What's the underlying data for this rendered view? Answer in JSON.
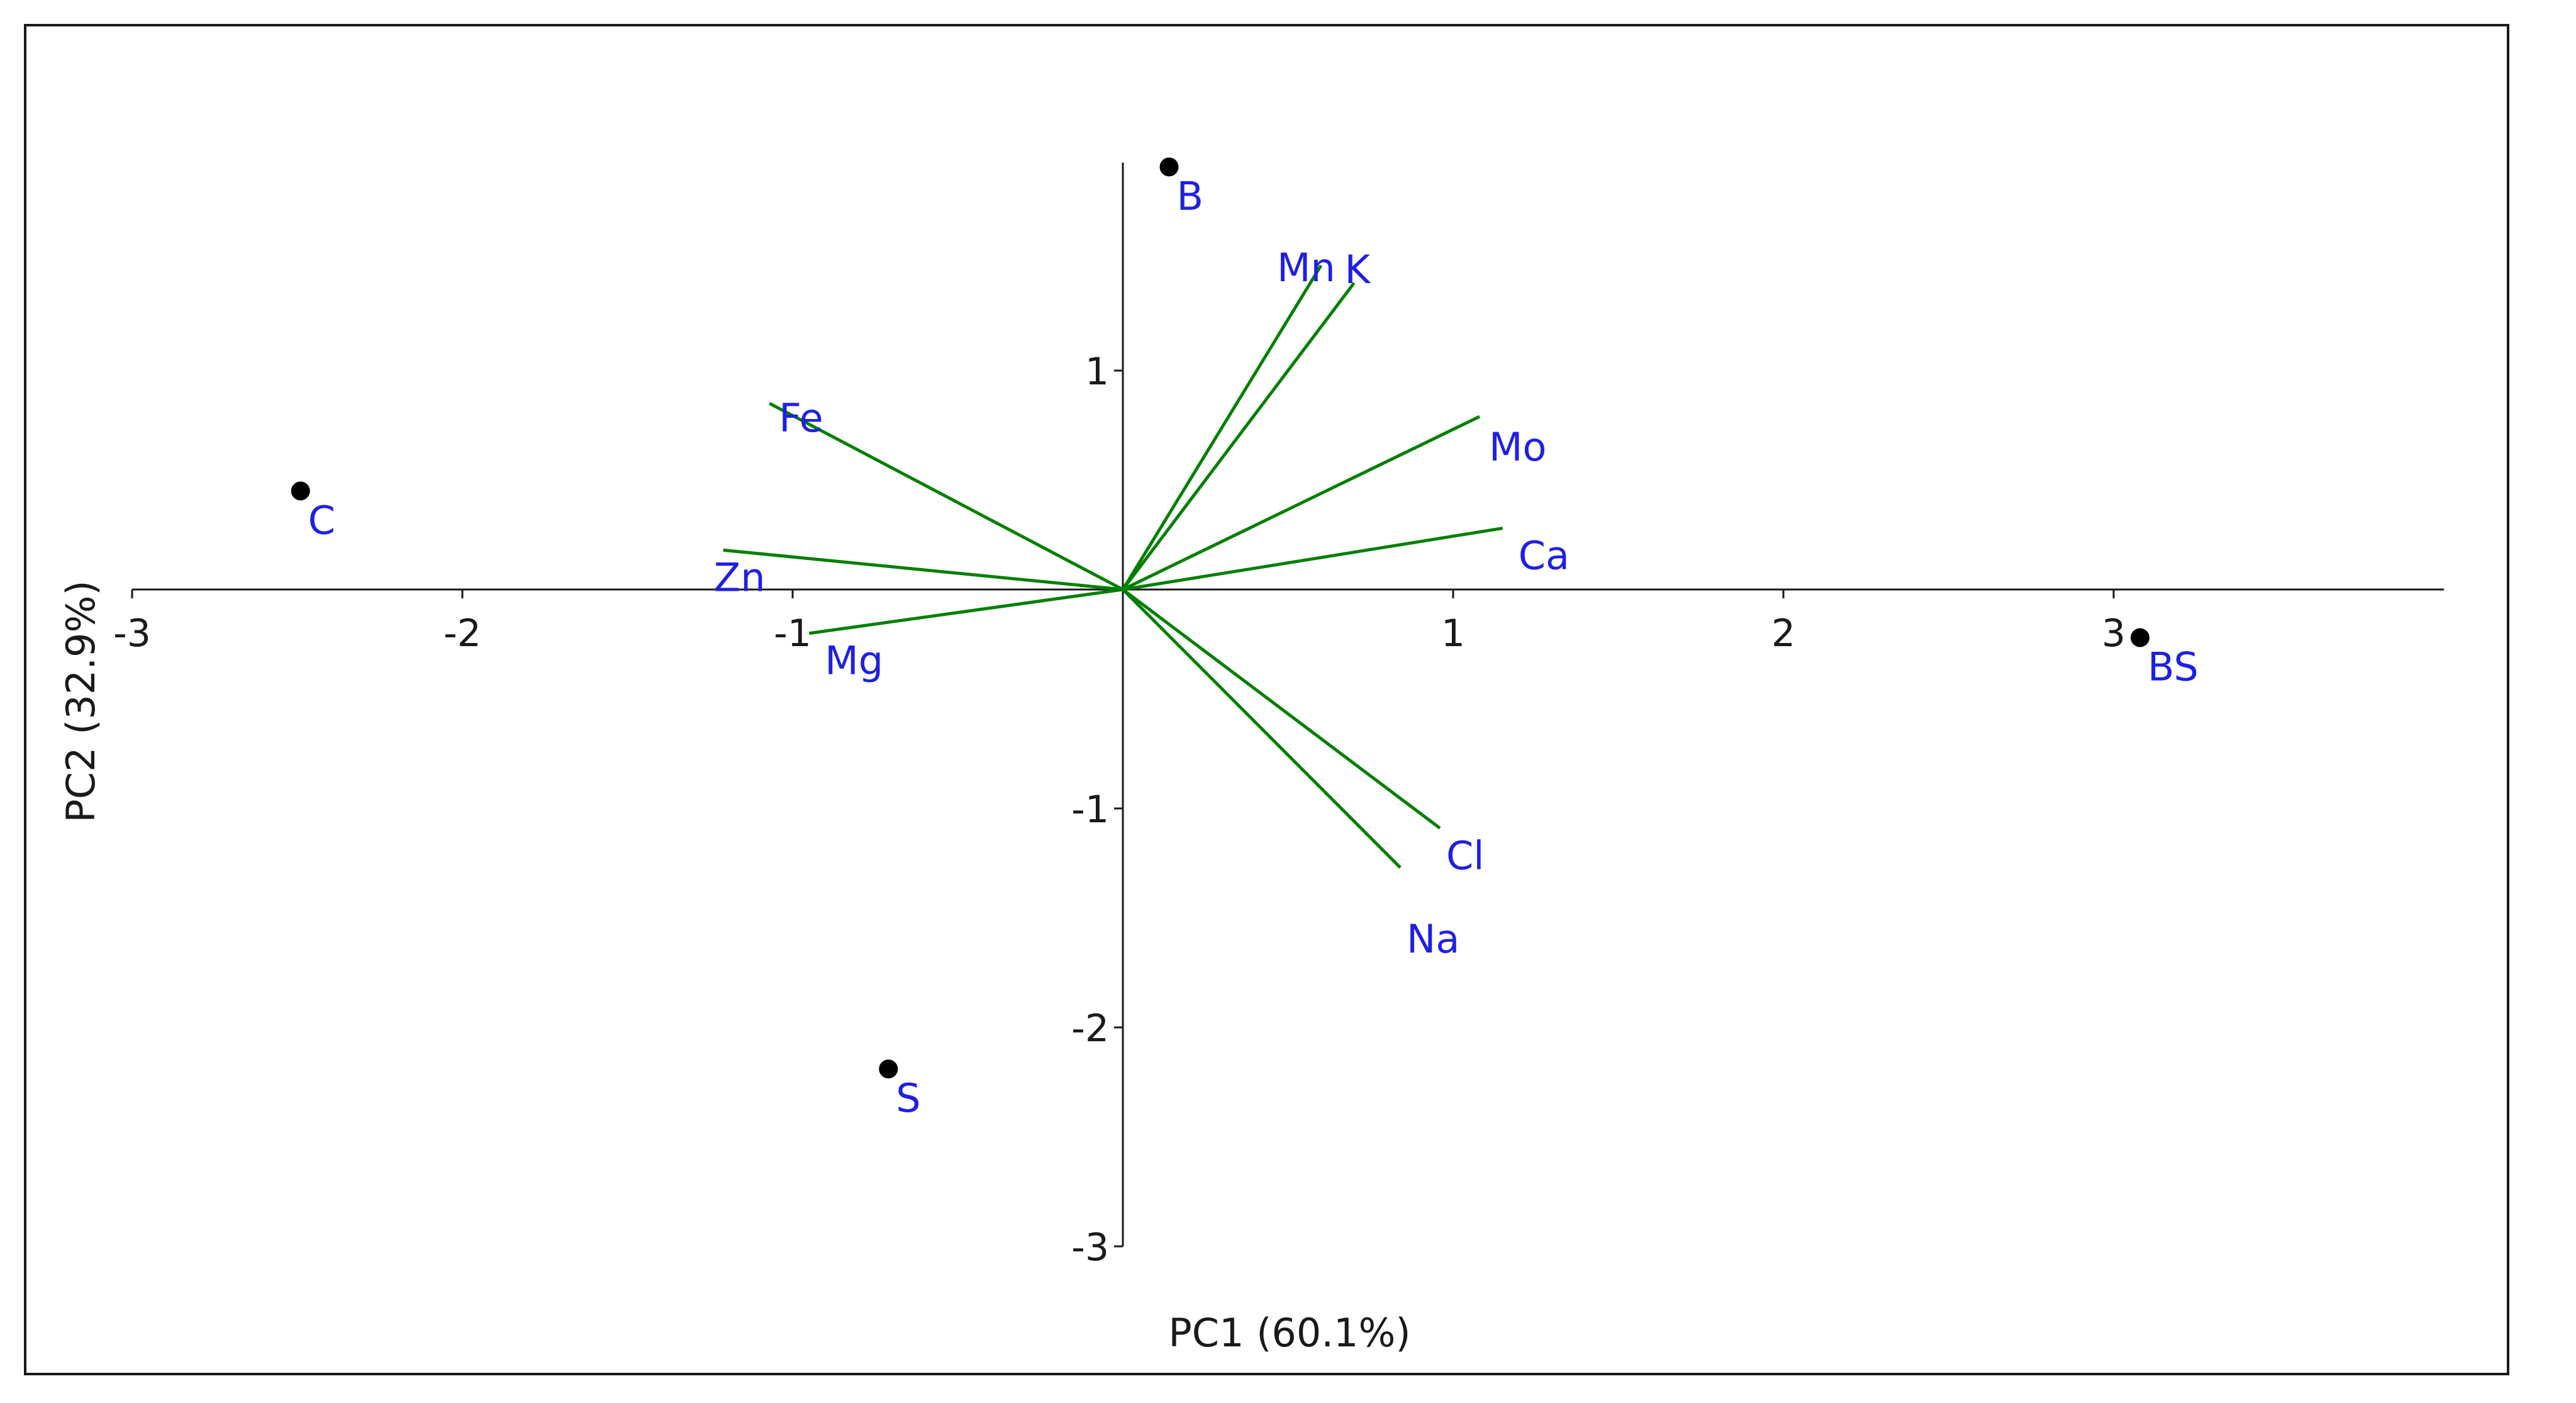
{
  "chart_data": {
    "type": "scatter",
    "subtype": "pca-biplot",
    "title": "",
    "xlabel": "PC1 (60.1%)",
    "ylabel": "PC2 (32.9%)",
    "xlim": [
      -3,
      4
    ],
    "ylim": [
      -3,
      1.95
    ],
    "x_ticks": [
      -3,
      -2,
      -1,
      1,
      2,
      3
    ],
    "y_ticks": [
      1,
      -1,
      -2,
      -3
    ],
    "grid": false,
    "legend": "none",
    "colors": {
      "points": "#000000",
      "loadings": "#008000",
      "labels": "#1f1fe6",
      "axes": "#1a1a1a"
    },
    "scores": [
      {
        "label": "B",
        "x": 0.14,
        "y": 1.93
      },
      {
        "label": "C",
        "x": -2.49,
        "y": 0.45
      },
      {
        "label": "BS",
        "x": 3.08,
        "y": -0.22
      },
      {
        "label": "S",
        "x": -0.71,
        "y": -2.19
      }
    ],
    "loadings": [
      {
        "label": "Mn",
        "x": 0.6,
        "y": 1.48
      },
      {
        "label": "K",
        "x": 0.7,
        "y": 1.4
      },
      {
        "label": "Fe",
        "x": -1.07,
        "y": 0.85
      },
      {
        "label": "Mo",
        "x": 1.08,
        "y": 0.79
      },
      {
        "label": "Ca",
        "x": 1.15,
        "y": 0.28
      },
      {
        "label": "Zn",
        "x": -1.21,
        "y": 0.18
      },
      {
        "label": "Mg",
        "x": -0.95,
        "y": -0.2
      },
      {
        "label": "Cl",
        "x": 0.96,
        "y": -1.09
      },
      {
        "label": "Na",
        "x": 0.84,
        "y": -1.27
      }
    ]
  }
}
